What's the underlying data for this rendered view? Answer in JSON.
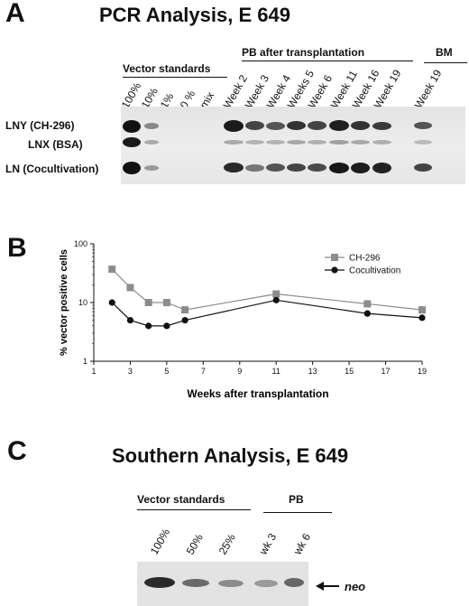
{
  "panelA": {
    "letter": "A",
    "title": "PCR Analysis, E 649",
    "groups": {
      "vector_standards": "Vector standards",
      "pb": "PB after transplantation",
      "bm": "BM"
    },
    "lanes": [
      "100%",
      "10%",
      "1%",
      "0 %",
      "mix",
      "Week 2",
      "Week 3",
      "Week 4",
      "Weeks 5",
      "Week 6",
      "Week 11",
      "Week 16",
      "Week 19",
      "Week 19"
    ],
    "rows": [
      "LNY (CH-296)",
      "LNX (BSA)",
      "LN (Cocultivation)"
    ]
  },
  "panelB": {
    "letter": "B",
    "chart_data": {
      "type": "line",
      "xlabel": "Weeks after  transplantation",
      "ylabel": "% vector positive cells",
      "xlim": [
        1,
        19
      ],
      "ylim": [
        1,
        100
      ],
      "yscale": "log",
      "xticks": [
        1,
        3,
        5,
        7,
        9,
        11,
        13,
        15,
        17,
        19
      ],
      "yticks": [
        1,
        10,
        100
      ],
      "legend_position": "top-right",
      "grid": false,
      "series": [
        {
          "name": "CH-296",
          "marker": "square",
          "color": "#8c8c8c",
          "x": [
            2,
            3,
            4,
            5,
            6,
            11,
            16,
            19
          ],
          "y": [
            37,
            18,
            10,
            10,
            7.5,
            14,
            9.5,
            7.5
          ]
        },
        {
          "name": "Cocultivation",
          "marker": "circle",
          "color": "#111111",
          "x": [
            2,
            3,
            4,
            5,
            6,
            11,
            16,
            19
          ],
          "y": [
            10,
            5,
            4,
            4,
            5,
            11,
            6.5,
            5.5
          ]
        }
      ]
    }
  },
  "panelC": {
    "letter": "C",
    "title": "Southern Analysis, E 649",
    "groups": {
      "vector_standards": "Vector standards",
      "pb": "PB"
    },
    "lanes": [
      "100%",
      "50%",
      "25%",
      "wk 3",
      "wk 6"
    ],
    "arrow_label": "neo"
  }
}
